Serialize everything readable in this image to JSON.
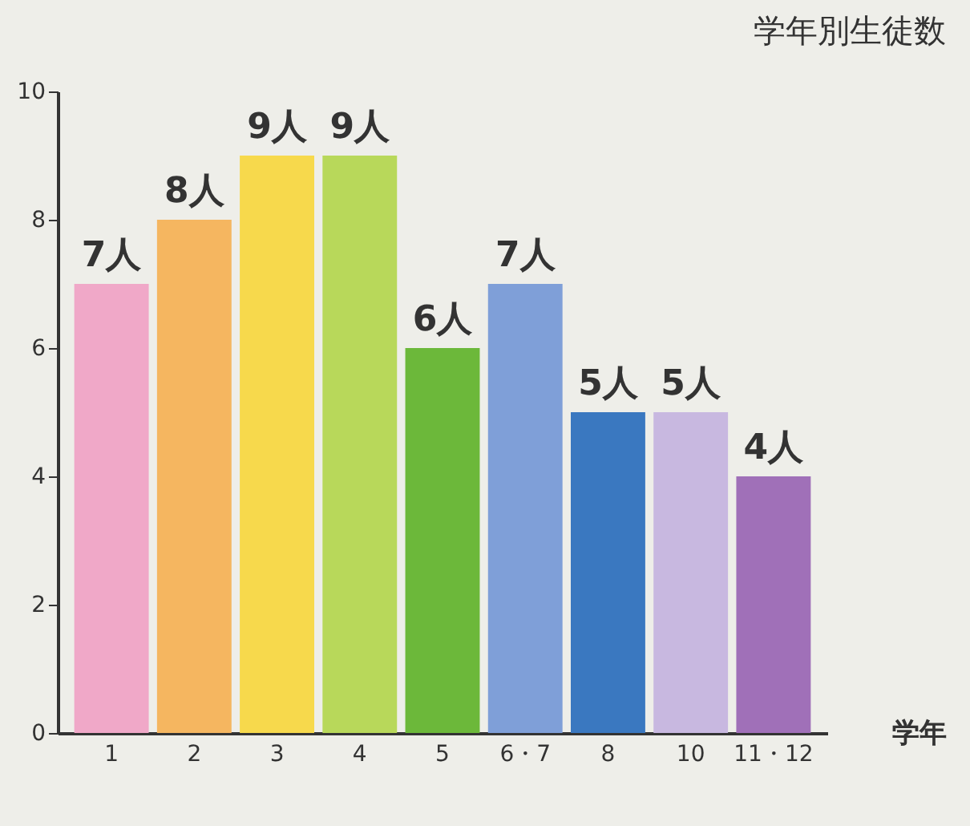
{
  "chart_data": {
    "type": "bar",
    "title": "学年別生徒数",
    "xlabel": "学年",
    "categories": [
      "1",
      "2",
      "3",
      "4",
      "5",
      "6・7",
      "8",
      "10",
      "11・12"
    ],
    "values": [
      7,
      8,
      9,
      9,
      6,
      7,
      5,
      5,
      4
    ],
    "colors": [
      "#f0a8c8",
      "#f5b660",
      "#f7d94c",
      "#b8d85a",
      "#6cb83a",
      "#7f9fd8",
      "#3a78c0",
      "#c8b8e0",
      "#a070b8"
    ],
    "value_labels": [
      "7人",
      "8人",
      "9人",
      "9人",
      "6人",
      "7人",
      "5人",
      "5人",
      "4人"
    ],
    "ylim": [
      0,
      10
    ],
    "yticks": [
      0,
      2,
      4,
      6,
      8,
      10
    ],
    "grid": false
  }
}
